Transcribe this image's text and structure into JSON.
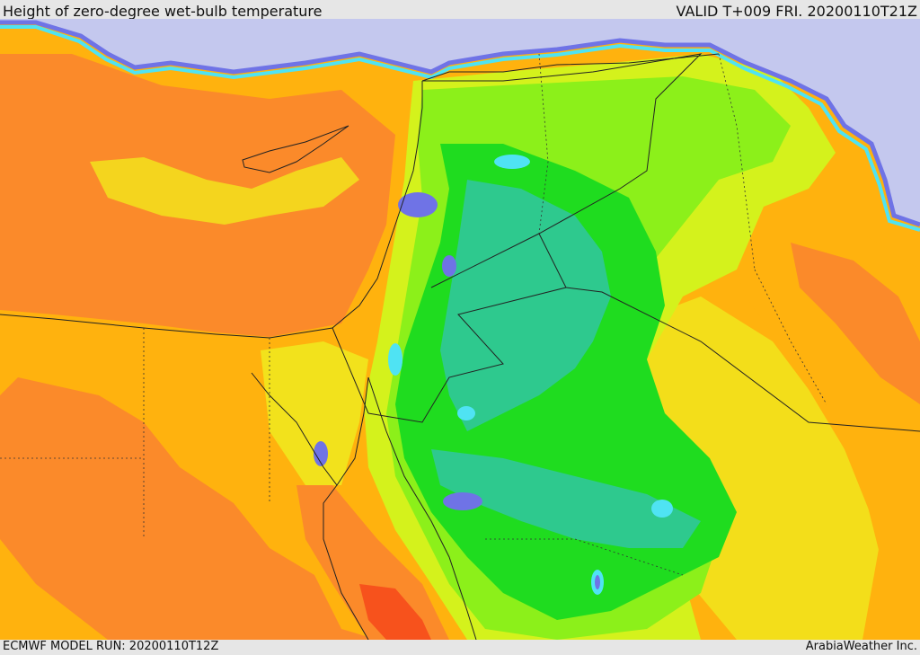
{
  "header": {
    "title": "Height of zero-degree wet-bulb temperature",
    "valid": "VALID T+009 FRI. 20200110T21Z"
  },
  "footer": {
    "model_run": "ECMWF MODEL RUN: 20200110T12Z",
    "credit": "ArabiaWeather Inc."
  },
  "colors": {
    "cold_sea": "#c4c8ee",
    "blue": "#6f73e6",
    "cyan": "#4fe3f3",
    "teal": "#2ec98e",
    "green": "#1fdc1f",
    "light_green": "#8cf01a",
    "yellow_green": "#d4f21c",
    "yellow": "#f2e21c",
    "orange": "#ffb20e",
    "dark_orange": "#fb8a2a",
    "red_orange": "#f7521c"
  }
}
